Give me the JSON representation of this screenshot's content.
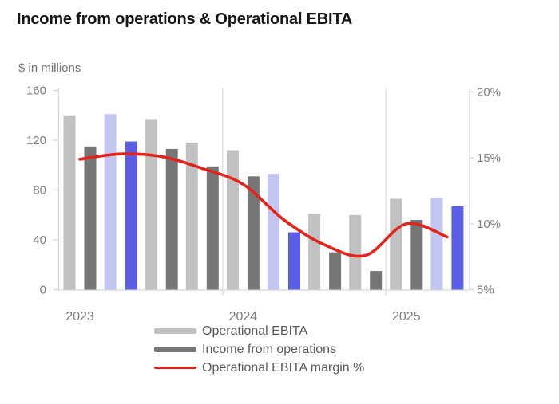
{
  "header": {
    "title": "Income from operations & Operational EBITA",
    "subtitle": "$ in millions"
  },
  "legend": [
    {
      "label": "Operational EBITA"
    },
    {
      "label": "Income from operations"
    },
    {
      "label": "Operational EBITA margin %"
    }
  ],
  "chart_data": {
    "type": "grouped-bar+line",
    "title": "Income from operations & Operational EBITA",
    "subtitle": "$ in millions",
    "year_labels": [
      "2023",
      "2024",
      "2025"
    ],
    "quarters_per_year": [
      4,
      4,
      2
    ],
    "highlight_quarters": [
      1,
      5,
      9
    ],
    "series": [
      {
        "name": "Operational EBITA",
        "type": "bar",
        "axis": "left",
        "values": [
          140,
          141,
          137,
          118,
          112,
          93,
          61,
          60,
          73,
          74
        ]
      },
      {
        "name": "Income from operations",
        "type": "bar",
        "axis": "left",
        "values": [
          115,
          119,
          113,
          99,
          91,
          46,
          30,
          15,
          56,
          67
        ]
      },
      {
        "name": "Operational EBITA margin %",
        "type": "line",
        "axis": "right",
        "values": [
          14.9,
          15.3,
          15.1,
          14.2,
          13.0,
          10.3,
          8.4,
          7.6,
          10.0,
          9.0
        ]
      }
    ],
    "left_axis": {
      "ticks": [
        "160",
        "120",
        "80",
        "40",
        "0"
      ],
      "min": 0,
      "max": 160
    },
    "right_axis": {
      "ticks": [
        "20%",
        "15%",
        "10%",
        "5%"
      ],
      "min": 5,
      "max": 20
    },
    "legend_position": "bottom",
    "grid": "year-separators-only",
    "colors": {
      "ebita_bar": "#c1c1c1",
      "income_bar": "#767676",
      "ebita_bar_highlight": "#c4c6f2",
      "income_bar_highlight": "#5a5ee3",
      "margin_line": "#e3241a",
      "axis_line": "#d6d6d6",
      "gridline": "#dcdcdc",
      "tick_label": "#7b7d81",
      "legend_text": "#58595d",
      "title": "#151515",
      "subtitle": "#6e6e6e"
    }
  }
}
